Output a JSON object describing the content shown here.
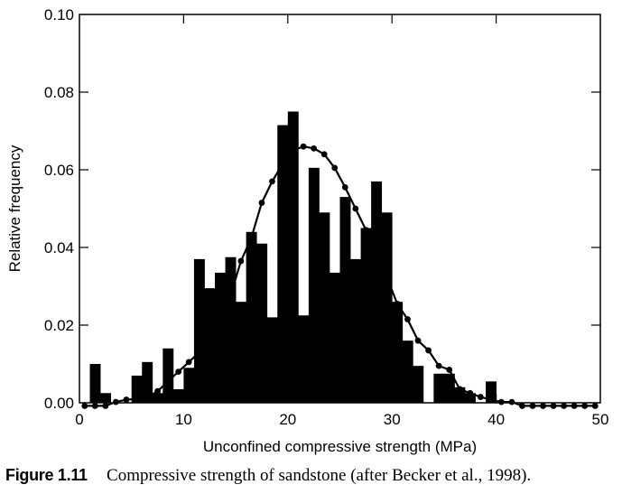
{
  "chart_data": {
    "type": "bar",
    "xlabel": "Unconfined compressive strength (MPa)",
    "ylabel": "Relative frequency",
    "xlim": [
      0,
      50
    ],
    "ylim": [
      0,
      0.1
    ],
    "x_ticks": [
      "0",
      "10",
      "20",
      "30",
      "40",
      "50"
    ],
    "y_ticks": [
      "0.00",
      "0.02",
      "0.04",
      "0.06",
      "0.08",
      "0.10"
    ],
    "grid": false,
    "histogram": {
      "bin_width": 1,
      "bin_starts": [
        1,
        2,
        3,
        4,
        5,
        6,
        7,
        8,
        9,
        10,
        11,
        12,
        13,
        14,
        15,
        16,
        17,
        18,
        19,
        20,
        21,
        22,
        23,
        24,
        25,
        26,
        27,
        28,
        29,
        30,
        31,
        32,
        33,
        34,
        35,
        36,
        37,
        38,
        39,
        40
      ],
      "values": [
        0.01,
        0.0025,
        0,
        0,
        0.007,
        0.0105,
        0.0025,
        0.014,
        0.0035,
        0.009,
        0.037,
        0.0295,
        0.0335,
        0.0375,
        0.026,
        0.044,
        0.041,
        0.022,
        0.0715,
        0.075,
        0.0225,
        0.0605,
        0.049,
        0.0335,
        0.053,
        0.037,
        0.045,
        0.057,
        0.049,
        0.026,
        0.016,
        0.0095,
        0,
        0.0075,
        0.0075,
        0.004,
        0.0025,
        0,
        0.0055,
        0
      ]
    },
    "fit_curve": {
      "x": [
        0.5,
        1.5,
        2.5,
        3.5,
        4.5,
        5.5,
        6.5,
        7.5,
        8.5,
        9.5,
        10.5,
        11.5,
        12.5,
        13.5,
        14.5,
        15.5,
        16.5,
        17.5,
        18.5,
        19.5,
        20.5,
        21.5,
        22.5,
        23.5,
        24.5,
        25.5,
        26.5,
        27.5,
        28.5,
        29.5,
        30.5,
        31.5,
        32.5,
        33.5,
        34.5,
        35.5,
        36.5,
        37.5,
        38.5,
        39.5,
        40.5,
        41.5,
        42.5,
        43.5,
        44.5,
        45.5,
        46.5,
        47.5,
        48.5,
        49.5
      ],
      "y": [
        -0.0008,
        -0.0008,
        -0.0008,
        0.0002,
        0.0008,
        0.001,
        0.0012,
        0.003,
        0.0055,
        0.008,
        0.0105,
        0.013,
        0.018,
        0.023,
        0.0275,
        0.0365,
        0.0425,
        0.0515,
        0.057,
        0.0615,
        0.065,
        0.066,
        0.0655,
        0.064,
        0.0605,
        0.0555,
        0.05,
        0.0445,
        0.0375,
        0.0325,
        0.0255,
        0.0215,
        0.016,
        0.0135,
        0.0095,
        0.0085,
        0.0035,
        0.0025,
        0.0015,
        0.0008,
        0.0002,
        0.0002,
        -0.0008,
        -0.0008,
        -0.0008,
        -0.0008,
        -0.0008,
        -0.0008,
        -0.0008,
        -0.0008
      ]
    }
  },
  "caption": {
    "label": "Figure 1.11",
    "text": "Compressive strength of sandstone (after Becker et al., 1998)."
  }
}
